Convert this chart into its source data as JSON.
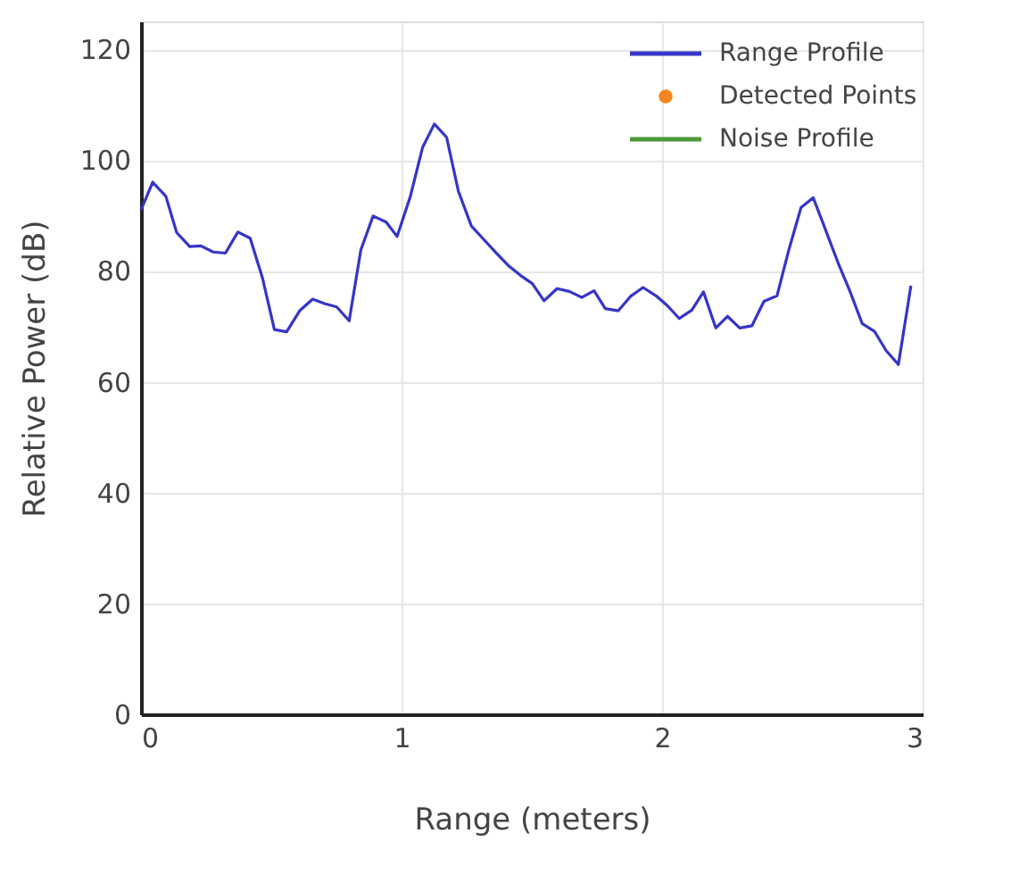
{
  "chart_data": {
    "type": "line",
    "xlabel": "Range (meters)",
    "ylabel": "Relative Power (dB)",
    "xlim": [
      0,
      3
    ],
    "xticks": [
      {
        "value": 0,
        "label": "0"
      },
      {
        "value": 1,
        "label": "1"
      },
      {
        "value": 2,
        "label": "2"
      },
      {
        "value": 3,
        "label": "3"
      }
    ],
    "ylim": [
      0,
      125
    ],
    "yticks": [
      0,
      20,
      40,
      60,
      80,
      100,
      120
    ],
    "grid": true,
    "legend": "top right",
    "line_style": "solid",
    "marker": "none",
    "series": [
      {
        "name": "Range Profile",
        "color": "#3535c8",
        "x": [
          0,
          0.045,
          0.095,
          0.137,
          0.187,
          0.23,
          0.277,
          0.324,
          0.372,
          0.419,
          0.467,
          0.512,
          0.559,
          0.609,
          0.659,
          0.704,
          0.751,
          0.799,
          0.844,
          0.891,
          0.941,
          0.983,
          1.033,
          1.081,
          1.126,
          1.173,
          1.218,
          1.268,
          1.315,
          1.362,
          1.409,
          1.456,
          1.502,
          1.547,
          1.597,
          1.644,
          1.692,
          1.739,
          1.782,
          1.832,
          1.879,
          1.927,
          1.977,
          2.021,
          2.066,
          2.114,
          2.159,
          2.206,
          2.251,
          2.298,
          2.345,
          2.391,
          2.441,
          2.486,
          2.533,
          2.58,
          2.625,
          2.675,
          2.722,
          2.768,
          2.815,
          2.86,
          2.907,
          2.955
        ],
        "values": [
          91.0,
          96.0,
          93.5,
          86.9,
          84.4,
          84.5,
          83.4,
          83.2,
          87.0,
          85.9,
          78.6,
          69.4,
          69.0,
          72.8,
          74.9,
          74.1,
          73.5,
          71.0,
          83.8,
          89.9,
          88.8,
          86.2,
          93.3,
          102.3,
          106.5,
          104.1,
          94.4,
          88.1,
          85.7,
          83.3,
          81.0,
          79.2,
          77.7,
          74.6,
          76.8,
          76.3,
          75.2,
          76.4,
          73.2,
          72.8,
          75.4,
          77.0,
          75.5,
          73.7,
          71.4,
          72.9,
          76.2,
          69.7,
          71.8,
          69.7,
          70.1,
          74.5,
          75.5,
          83.7,
          91.4,
          93.2,
          87.7,
          81.5,
          76.2,
          70.5,
          69.1,
          65.6,
          63.1,
          77.3
        ]
      },
      {
        "name": "Detected Points",
        "type": "scatter",
        "color": "#f5851f"
      },
      {
        "name": "Noise Profile",
        "color": "#4a9a3a"
      }
    ]
  }
}
